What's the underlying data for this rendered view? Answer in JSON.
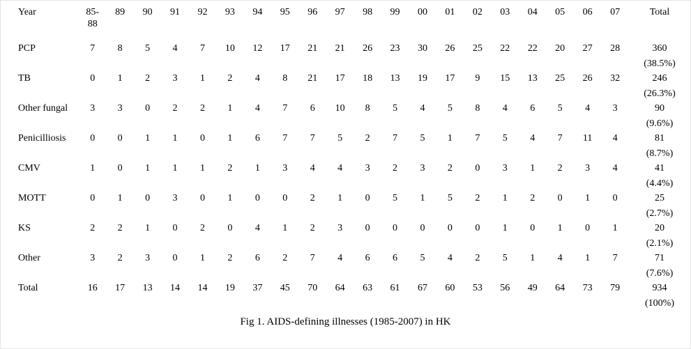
{
  "table": {
    "header": {
      "label": "Year",
      "years": [
        "85-\n88",
        "89",
        "90",
        "91",
        "92",
        "93",
        "94",
        "95",
        "96",
        "97",
        "98",
        "99",
        "00",
        "01",
        "02",
        "03",
        "04",
        "05",
        "06",
        "07"
      ],
      "total": "Total"
    },
    "rows": [
      {
        "label": "PCP",
        "values": [
          7,
          8,
          5,
          4,
          7,
          10,
          12,
          17,
          21,
          21,
          26,
          23,
          30,
          26,
          25,
          22,
          22,
          20,
          27,
          28
        ],
        "total": "360",
        "pct": "(38.5%)"
      },
      {
        "label": "TB",
        "values": [
          0,
          1,
          2,
          3,
          1,
          2,
          4,
          8,
          21,
          17,
          18,
          13,
          19,
          17,
          9,
          15,
          13,
          25,
          26,
          32
        ],
        "total": "246",
        "pct": "(26.3%)"
      },
      {
        "label": "Other fungal",
        "values": [
          3,
          3,
          0,
          2,
          2,
          1,
          4,
          7,
          6,
          10,
          8,
          5,
          4,
          5,
          8,
          4,
          6,
          5,
          4,
          3
        ],
        "total": "90",
        "pct": "(9.6%)"
      },
      {
        "label": "Penicilliosis",
        "values": [
          0,
          0,
          1,
          1,
          0,
          1,
          6,
          7,
          7,
          5,
          2,
          7,
          5,
          1,
          7,
          5,
          4,
          7,
          11,
          4
        ],
        "total": "81",
        "pct": "(8.7%)"
      },
      {
        "label": "CMV",
        "values": [
          1,
          0,
          1,
          1,
          1,
          2,
          1,
          3,
          4,
          4,
          3,
          2,
          3,
          2,
          0,
          3,
          1,
          2,
          3,
          4
        ],
        "total": "41",
        "pct": "(4.4%)"
      },
      {
        "label": "MOTT",
        "values": [
          0,
          1,
          0,
          3,
          0,
          1,
          0,
          0,
          2,
          1,
          0,
          5,
          1,
          5,
          2,
          1,
          2,
          0,
          1,
          0
        ],
        "total": "25",
        "pct": "(2.7%)"
      },
      {
        "label": "KS",
        "values": [
          2,
          2,
          1,
          0,
          2,
          0,
          4,
          1,
          2,
          3,
          0,
          0,
          0,
          0,
          0,
          1,
          0,
          1,
          0,
          1
        ],
        "total": "20",
        "pct": "(2.1%)"
      },
      {
        "label": "Other",
        "values": [
          3,
          2,
          3,
          0,
          1,
          2,
          6,
          2,
          7,
          4,
          6,
          6,
          5,
          4,
          2,
          5,
          1,
          4,
          1,
          7
        ],
        "total": "71",
        "pct": "(7.6%)"
      },
      {
        "label": "Total",
        "values": [
          16,
          17,
          13,
          14,
          14,
          19,
          37,
          45,
          70,
          64,
          63,
          61,
          67,
          60,
          53,
          56,
          49,
          64,
          73,
          79
        ],
        "total": "934",
        "pct": "(100%)"
      }
    ]
  },
  "caption": "Fig 1. AIDS-defining illnesses (1985-2007) in HK",
  "chart_data": {
    "type": "table",
    "title": "Fig 1. AIDS-defining illnesses (1985-2007) in HK",
    "categories": [
      "85-88",
      "89",
      "90",
      "91",
      "92",
      "93",
      "94",
      "95",
      "96",
      "97",
      "98",
      "99",
      "00",
      "01",
      "02",
      "03",
      "04",
      "05",
      "06",
      "07"
    ],
    "series": [
      {
        "name": "PCP",
        "values": [
          7,
          8,
          5,
          4,
          7,
          10,
          12,
          17,
          21,
          21,
          26,
          23,
          30,
          26,
          25,
          22,
          22,
          20,
          27,
          28
        ],
        "total": 360,
        "percent": "38.5%"
      },
      {
        "name": "TB",
        "values": [
          0,
          1,
          2,
          3,
          1,
          2,
          4,
          8,
          21,
          17,
          18,
          13,
          19,
          17,
          9,
          15,
          13,
          25,
          26,
          32
        ],
        "total": 246,
        "percent": "26.3%"
      },
      {
        "name": "Other fungal",
        "values": [
          3,
          3,
          0,
          2,
          2,
          1,
          4,
          7,
          6,
          10,
          8,
          5,
          4,
          5,
          8,
          4,
          6,
          5,
          4,
          3
        ],
        "total": 90,
        "percent": "9.6%"
      },
      {
        "name": "Penicilliosis",
        "values": [
          0,
          0,
          1,
          1,
          0,
          1,
          6,
          7,
          7,
          5,
          2,
          7,
          5,
          1,
          7,
          5,
          4,
          7,
          11,
          4
        ],
        "total": 81,
        "percent": "8.7%"
      },
      {
        "name": "CMV",
        "values": [
          1,
          0,
          1,
          1,
          1,
          2,
          1,
          3,
          4,
          4,
          3,
          2,
          3,
          2,
          0,
          3,
          1,
          2,
          3,
          4
        ],
        "total": 41,
        "percent": "4.4%"
      },
      {
        "name": "MOTT",
        "values": [
          0,
          1,
          0,
          3,
          0,
          1,
          0,
          0,
          2,
          1,
          0,
          5,
          1,
          5,
          2,
          1,
          2,
          0,
          1,
          0
        ],
        "total": 25,
        "percent": "2.7%"
      },
      {
        "name": "KS",
        "values": [
          2,
          2,
          1,
          0,
          2,
          0,
          4,
          1,
          2,
          3,
          0,
          0,
          0,
          0,
          0,
          1,
          0,
          1,
          0,
          1
        ],
        "total": 20,
        "percent": "2.1%"
      },
      {
        "name": "Other",
        "values": [
          3,
          2,
          3,
          0,
          1,
          2,
          6,
          2,
          7,
          4,
          6,
          6,
          5,
          4,
          2,
          5,
          1,
          4,
          1,
          7
        ],
        "total": 71,
        "percent": "7.6%"
      },
      {
        "name": "Total",
        "values": [
          16,
          17,
          13,
          14,
          14,
          19,
          37,
          45,
          70,
          64,
          63,
          61,
          67,
          60,
          53,
          56,
          49,
          64,
          73,
          79
        ],
        "total": 934,
        "percent": "100%"
      }
    ]
  }
}
